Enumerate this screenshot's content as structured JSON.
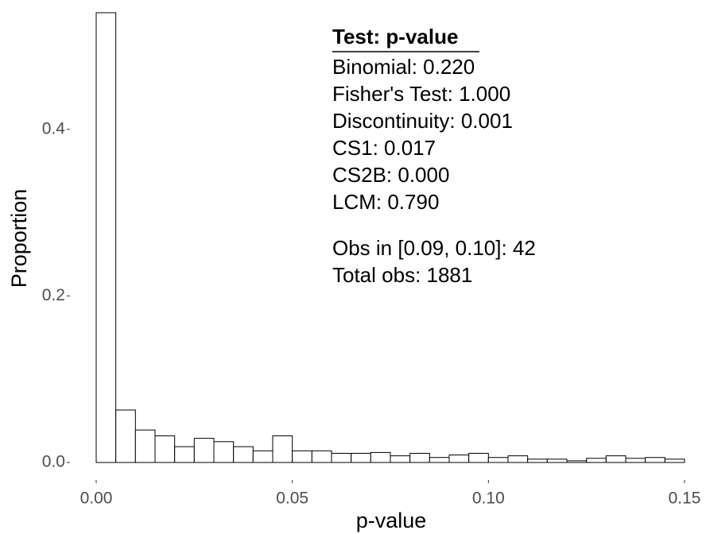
{
  "chart_data": {
    "type": "histogram",
    "x_label": "p-value",
    "y_label": "Proportion",
    "bins": [
      0,
      0.005,
      0.01,
      0.015,
      0.02,
      0.025,
      0.03,
      0.035,
      0.04,
      0.045,
      0.05,
      0.055,
      0.06,
      0.065,
      0.07,
      0.075,
      0.08,
      0.085,
      0.09,
      0.095,
      0.1,
      0.105,
      0.11,
      0.115,
      0.12,
      0.125,
      0.13,
      0.135,
      0.14,
      0.145,
      0.15
    ],
    "values": [
      0.54,
      0.063,
      0.039,
      0.032,
      0.019,
      0.029,
      0.025,
      0.019,
      0.014,
      0.032,
      0.014,
      0.014,
      0.011,
      0.011,
      0.012,
      0.008,
      0.011,
      0.006,
      0.009,
      0.011,
      0.006,
      0.008,
      0.004,
      0.004,
      0.002,
      0.005,
      0.008,
      0.005,
      0.006,
      0.004
    ],
    "color": "#ffffff",
    "edge_color": "#000000",
    "xlim": [
      0,
      0.15
    ],
    "ylim": [
      0,
      0.54
    ],
    "xticks": [
      {
        "value": 0,
        "label": "0.00"
      },
      0.05,
      {
        "value": 0.1,
        "label": "0.10"
      },
      0.15
    ],
    "yticks": [
      {
        "value": 0,
        "label": "0.0"
      },
      0.2,
      0.4
    ],
    "grid": false,
    "annotation": {
      "title": "Test: p-value",
      "lines": [
        "Binomial: 0.220",
        "Fisher's Test: 1.000",
        "Discontinuity: 0.001",
        "CS1: 0.017",
        "CS2B: 0.000",
        "LCM: 0.790"
      ],
      "extra_lines": [
        "Obs in [0.09, 0.10]: 42",
        "Total obs: 1881"
      ]
    }
  }
}
